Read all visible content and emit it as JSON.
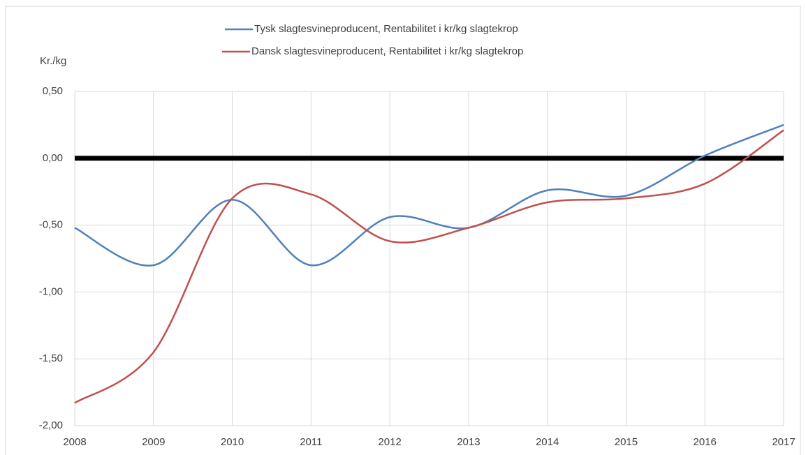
{
  "chart_data": {
    "type": "line",
    "y_label": "Kr./kg",
    "x": [
      2008,
      2009,
      2010,
      2011,
      2012,
      2013,
      2014,
      2015,
      2016,
      2017
    ],
    "xlim": [
      2008,
      2017
    ],
    "xticks": [
      2008,
      2009,
      2010,
      2011,
      2012,
      2013,
      2014,
      2015,
      2016,
      2017
    ],
    "ylim": [
      -2.0,
      0.5
    ],
    "yticks": [
      {
        "value": 0.5,
        "label": "0,50"
      },
      {
        "value": 0.0,
        "label": "0,00"
      },
      {
        "value": -0.5,
        "label": "-0,50"
      },
      {
        "value": -1.0,
        "label": "-1,00"
      },
      {
        "value": -1.5,
        "label": "-1,50"
      },
      {
        "value": -2.0,
        "label": "-2,00"
      }
    ],
    "grid": true,
    "smooth": true,
    "zero_line": {
      "value": 0,
      "color": "#000000"
    },
    "series": [
      {
        "name": "Tysk slagtesvineproducent, Rentabilitet i kr/kg slagtekrop",
        "color": "#4f81bd",
        "values": [
          -0.52,
          -0.8,
          -0.31,
          -0.8,
          -0.44,
          -0.52,
          -0.24,
          -0.28,
          0.02,
          0.25
        ]
      },
      {
        "name": "Dansk slagtesvineproducent, Rentabilitet i kr/kg slagtekrop",
        "color": "#c0504d",
        "values": [
          -1.83,
          -1.45,
          -0.3,
          -0.27,
          -0.62,
          -0.52,
          -0.33,
          -0.3,
          -0.19,
          0.21
        ]
      }
    ]
  }
}
